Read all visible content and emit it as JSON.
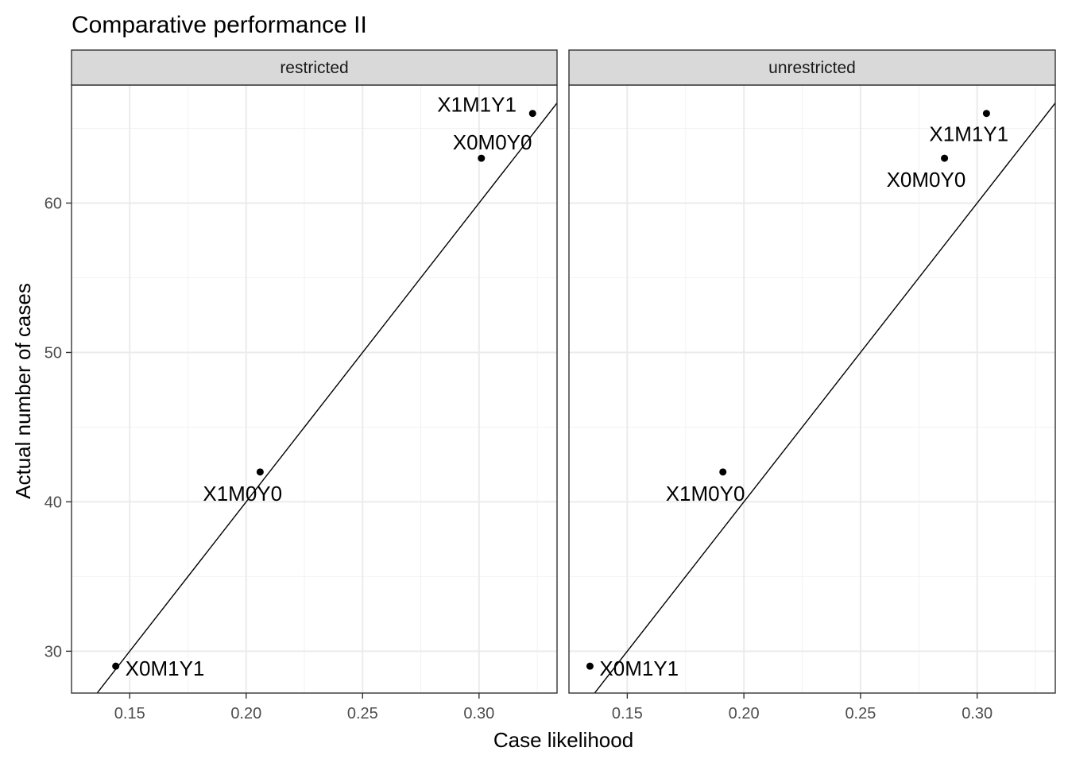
{
  "chart_data": {
    "type": "scatter",
    "title": "Comparative performance II",
    "xlabel": "Case likelihood",
    "ylabel": "Actual number of cases",
    "xlim": [
      0.125,
      0.3335
    ],
    "ylim": [
      27.2,
      67.9
    ],
    "x_ticks": [
      0.15,
      0.2,
      0.25,
      0.3
    ],
    "x_tick_labels": [
      "0.15",
      "0.20",
      "0.25",
      "0.30"
    ],
    "y_ticks": [
      30,
      40,
      50,
      60
    ],
    "y_tick_labels": [
      "30",
      "40",
      "50",
      "60"
    ],
    "grid": true,
    "reference_line": "y = 200x",
    "panels": [
      {
        "strip": "restricted",
        "points": [
          {
            "label": "X0M1Y1",
            "x": 0.144,
            "y": 29
          },
          {
            "label": "X1M0Y0",
            "x": 0.206,
            "y": 42
          },
          {
            "label": "X0M0Y0",
            "x": 0.301,
            "y": 63
          },
          {
            "label": "X1M1Y1",
            "x": 0.323,
            "y": 66
          }
        ]
      },
      {
        "strip": "unrestricted",
        "points": [
          {
            "label": "X0M1Y1",
            "x": 0.134,
            "y": 29
          },
          {
            "label": "X1M0Y0",
            "x": 0.191,
            "y": 42
          },
          {
            "label": "X0M0Y0",
            "x": 0.286,
            "y": 63
          },
          {
            "label": "X1M1Y1",
            "x": 0.304,
            "y": 66
          }
        ]
      }
    ]
  }
}
